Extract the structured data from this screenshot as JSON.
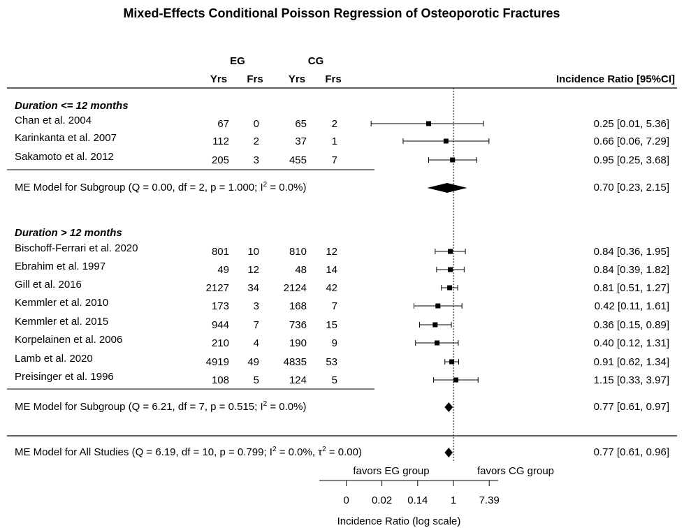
{
  "chart_data": {
    "type": "forest",
    "title": "Mixed-Effects Conditional Poisson Regression of Osteoporotic Fractures",
    "column_headers": {
      "group_eg": "EG",
      "group_cg": "CG",
      "eg_yrs": "Yrs",
      "eg_frs": "Frs",
      "cg_yrs": "Yrs",
      "cg_frs": "Frs",
      "estimate": "Incidence Ratio [95%CI]"
    },
    "subgroups": [
      {
        "label": "Duration <= 12 months",
        "studies": [
          {
            "study": "Chan et al. 2004",
            "eg_yrs": "67",
            "eg_frs": "0",
            "cg_yrs": "65",
            "cg_frs": "2",
            "ir": 0.25,
            "lo": 0.01,
            "hi": 5.36,
            "text": "0.25 [0.01, 5.36]"
          },
          {
            "study": "Karinkanta et al. 2007",
            "eg_yrs": "112",
            "eg_frs": "2",
            "cg_yrs": "37",
            "cg_frs": "1",
            "ir": 0.66,
            "lo": 0.06,
            "hi": 7.29,
            "text": "0.66 [0.06, 7.29]"
          },
          {
            "study": "Sakamoto et al. 2012",
            "eg_yrs": "205",
            "eg_frs": "3",
            "cg_yrs": "455",
            "cg_frs": "7",
            "ir": 0.95,
            "lo": 0.25,
            "hi": 3.68,
            "text": "0.95 [0.25, 3.68]"
          }
        ],
        "model": {
          "label_pre": "ME Model for Subgroup (Q = 0.00, df = 2, p = 1.000; I",
          "sup": "2",
          "label_post": " = 0.0%)",
          "ir": 0.7,
          "lo": 0.23,
          "hi": 2.15,
          "text": "0.70 [0.23, 2.15]"
        }
      },
      {
        "label": "Duration > 12 months",
        "studies": [
          {
            "study": "Bischoff-Ferrari et al. 2020",
            "eg_yrs": "801",
            "eg_frs": "10",
            "cg_yrs": "810",
            "cg_frs": "12",
            "ir": 0.84,
            "lo": 0.36,
            "hi": 1.95,
            "text": "0.84 [0.36, 1.95]"
          },
          {
            "study": "Ebrahim et al. 1997",
            "eg_yrs": "49",
            "eg_frs": "12",
            "cg_yrs": "48",
            "cg_frs": "14",
            "ir": 0.84,
            "lo": 0.39,
            "hi": 1.82,
            "text": "0.84 [0.39, 1.82]"
          },
          {
            "study": "Gill et al. 2016",
            "eg_yrs": "2127",
            "eg_frs": "34",
            "cg_yrs": "2124",
            "cg_frs": "42",
            "ir": 0.81,
            "lo": 0.51,
            "hi": 1.27,
            "text": "0.81 [0.51, 1.27]"
          },
          {
            "study": "Kemmler et al.  2010",
            "eg_yrs": "173",
            "eg_frs": "3",
            "cg_yrs": "168",
            "cg_frs": "7",
            "ir": 0.42,
            "lo": 0.11,
            "hi": 1.61,
            "text": "0.42 [0.11, 1.61]"
          },
          {
            "study": "Kemmler et al. 2015",
            "eg_yrs": "944",
            "eg_frs": "7",
            "cg_yrs": "736",
            "cg_frs": "15",
            "ir": 0.36,
            "lo": 0.15,
            "hi": 0.89,
            "text": "0.36 [0.15, 0.89]"
          },
          {
            "study": "Korpelainen et al. 2006",
            "eg_yrs": "210",
            "eg_frs": "4",
            "cg_yrs": "190",
            "cg_frs": "9",
            "ir": 0.4,
            "lo": 0.12,
            "hi": 1.31,
            "text": "0.40 [0.12, 1.31]"
          },
          {
            "study": "Lamb et al. 2020",
            "eg_yrs": "4919",
            "eg_frs": "49",
            "cg_yrs": "4835",
            "cg_frs": "53",
            "ir": 0.91,
            "lo": 0.62,
            "hi": 1.34,
            "text": "0.91 [0.62, 1.34]"
          },
          {
            "study": "Preisinger et al. 1996",
            "eg_yrs": "108",
            "eg_frs": "5",
            "cg_yrs": "124",
            "cg_frs": "5",
            "ir": 1.15,
            "lo": 0.33,
            "hi": 3.97,
            "text": "1.15 [0.33, 3.97]"
          }
        ],
        "model": {
          "label_pre": "ME Model for Subgroup (Q = 6.21, df = 7, p = 0.515; I",
          "sup": "2",
          "label_post": " = 0.0%)",
          "ir": 0.77,
          "lo": 0.61,
          "hi": 0.97,
          "text": "0.77 [0.61, 0.97]"
        }
      }
    ],
    "overall": {
      "label_pre": "ME Model for All Studies (Q = 6.19, df = 10, p = 0.799; I",
      "sup": "2",
      "label_mid": " = 0.0%, τ",
      "sup2": "2",
      "label_post": " = 0.00)",
      "ir": 0.77,
      "lo": 0.61,
      "hi": 0.96,
      "text": "0.77 [0.61, 0.96]"
    },
    "x_axis": {
      "scale": "log",
      "label": "Incidence Ratio (log scale)",
      "ticks": [
        {
          "label": "0",
          "value": 0.0025
        },
        {
          "label": "0.02",
          "value": 0.0183
        },
        {
          "label": "0.14",
          "value": 0.1353
        },
        {
          "label": "1",
          "value": 1
        },
        {
          "label": "7.39",
          "value": 7.389
        }
      ],
      "reference_line": 1
    },
    "favors_left": "favors EG group",
    "favors_right": "favors CG group"
  }
}
